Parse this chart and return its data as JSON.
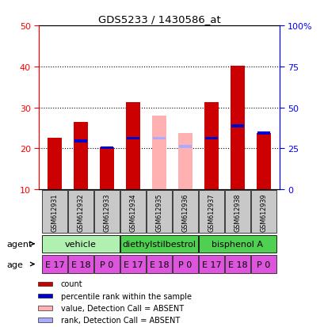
{
  "title": "GDS5233 / 1430586_at",
  "samples": [
    "GSM612931",
    "GSM612932",
    "GSM612933",
    "GSM612934",
    "GSM612935",
    "GSM612936",
    "GSM612937",
    "GSM612938",
    "GSM612939"
  ],
  "count_values": [
    22.5,
    26.5,
    20.2,
    31.2,
    null,
    null,
    31.2,
    40.2,
    23.8
  ],
  "absent_count_values": [
    null,
    null,
    null,
    null,
    28.0,
    23.8,
    null,
    null,
    null
  ],
  "has_rank_marker": [
    false,
    true,
    true,
    true,
    true,
    true,
    true,
    true,
    true
  ],
  "rank_marker_values": [
    null,
    21.8,
    20.2,
    22.5,
    22.5,
    20.5,
    22.5,
    25.5,
    23.8
  ],
  "absent_rank_values": [
    null,
    null,
    null,
    null,
    22.5,
    20.5,
    null,
    null,
    null
  ],
  "ylim_left": [
    10,
    50
  ],
  "yticks_left": [
    10,
    20,
    30,
    40,
    50
  ],
  "ylim_right": [
    0,
    100
  ],
  "yticks_right": [
    0,
    25,
    50,
    75,
    100
  ],
  "ytick_labels_right": [
    "0",
    "25",
    "50",
    "75",
    "100%"
  ],
  "agent_groups": [
    {
      "label": "vehicle",
      "start": 0,
      "end": 3,
      "color": "#b0f0b0"
    },
    {
      "label": "diethylstilbestrol",
      "start": 3,
      "end": 6,
      "color": "#50d050"
    },
    {
      "label": "bisphenol A",
      "start": 6,
      "end": 9,
      "color": "#50d050"
    }
  ],
  "age_labels": [
    "E 17",
    "E 18",
    "P 0",
    "E 17",
    "E 18",
    "P 0",
    "E 17",
    "E 18",
    "P 0"
  ],
  "age_color": "#dd55dd",
  "bar_width": 0.55,
  "count_color": "#cc0000",
  "absent_count_color": "#ffb0b0",
  "rank_color": "#0000cc",
  "absent_rank_color": "#aaaaff",
  "bg_color": "#ffffff",
  "sample_bg_color": "#c8c8c8"
}
